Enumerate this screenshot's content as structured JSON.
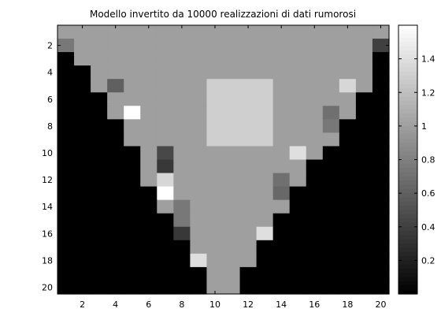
{
  "chart_data": {
    "type": "heatmap",
    "title": "Modello invertito da 10000 realizzazioni di dati rumorosi",
    "xlabel": "",
    "ylabel": "",
    "x_ticks": [
      2,
      4,
      6,
      8,
      10,
      12,
      14,
      16,
      18,
      20
    ],
    "y_ticks": [
      2,
      4,
      6,
      8,
      10,
      12,
      14,
      16,
      18,
      20
    ],
    "x_range": [
      1,
      20
    ],
    "y_range": [
      1,
      20
    ],
    "y_direction": "reversed",
    "colormap": "gray",
    "clim": [
      0,
      1.6
    ],
    "colorbar": {
      "ticks": [
        0.2,
        0.4,
        0.6,
        0.8,
        1,
        1.2,
        1.4
      ],
      "labels": [
        "0.2",
        "0.4",
        "0.6",
        "0.8",
        "1",
        "1.2",
        "1.4"
      ]
    },
    "z": [
      [
        1,
        1,
        1,
        1,
        1,
        1,
        1,
        1,
        1,
        1,
        1,
        1,
        1,
        1,
        1,
        1,
        1,
        1,
        1,
        1
      ],
      [
        0.75,
        1,
        1,
        1,
        1,
        1,
        1,
        1,
        1,
        1,
        1,
        1,
        1,
        1,
        1,
        1,
        1,
        1,
        1,
        0.4
      ],
      [
        0,
        1,
        1,
        1,
        1,
        1,
        1,
        1,
        1,
        1,
        1,
        1,
        1,
        1,
        1,
        1,
        1,
        1,
        1,
        0
      ],
      [
        0,
        0,
        1,
        1,
        1,
        1,
        1,
        1,
        1,
        1,
        1,
        1,
        1,
        1,
        1,
        1,
        1,
        1,
        1,
        0
      ],
      [
        0,
        0,
        1,
        0.6,
        1,
        1,
        1,
        1,
        1,
        1.3,
        1.3,
        1.3,
        1.3,
        1,
        1,
        1,
        1,
        1.35,
        1,
        0
      ],
      [
        0,
        0,
        0,
        1,
        1,
        1,
        1,
        1,
        1,
        1.3,
        1.3,
        1.3,
        1.3,
        1,
        1,
        1,
        1,
        1,
        0,
        0
      ],
      [
        0,
        0,
        0,
        1,
        1.6,
        1,
        1,
        1,
        1,
        1.3,
        1.3,
        1.3,
        1.3,
        1,
        1,
        1,
        0.7,
        1,
        0,
        0
      ],
      [
        0,
        0,
        0,
        0,
        1,
        1,
        1,
        1,
        1,
        1.3,
        1.3,
        1.3,
        1.3,
        1,
        1,
        1,
        0.75,
        0,
        0,
        0
      ],
      [
        0,
        0,
        0,
        0,
        1,
        1,
        1,
        1,
        1,
        1.3,
        1.3,
        1.3,
        1.3,
        1,
        1,
        1,
        1,
        0,
        0,
        0
      ],
      [
        0,
        0,
        0,
        0,
        0,
        1,
        0.45,
        1,
        1,
        1,
        1,
        1,
        1,
        1,
        1.4,
        1,
        0,
        0,
        0,
        0
      ],
      [
        0,
        0,
        0,
        0,
        0,
        1,
        0.35,
        1,
        1,
        1,
        1,
        1,
        1,
        1,
        1,
        0,
        0,
        0,
        0,
        0
      ],
      [
        0,
        0,
        0,
        0,
        0,
        1,
        1.35,
        1,
        1,
        1,
        1,
        1,
        1,
        0.7,
        1,
        0,
        0,
        0,
        0,
        0
      ],
      [
        0,
        0,
        0,
        0,
        0,
        0,
        1.6,
        1,
        1,
        1,
        1,
        1,
        1,
        0.65,
        0,
        0,
        0,
        0,
        0,
        0
      ],
      [
        0,
        0,
        0,
        0,
        0,
        0,
        1,
        0.75,
        1,
        1,
        1,
        1,
        1,
        1,
        0,
        0,
        0,
        0,
        0,
        0
      ],
      [
        0,
        0,
        0,
        0,
        0,
        0,
        0,
        0.75,
        1,
        1,
        1,
        1,
        1,
        0,
        0,
        0,
        0,
        0,
        0,
        0
      ],
      [
        0,
        0,
        0,
        0,
        0,
        0,
        0,
        0.35,
        1,
        1,
        1,
        1,
        1.4,
        0,
        0,
        0,
        0,
        0,
        0,
        0
      ],
      [
        0,
        0,
        0,
        0,
        0,
        0,
        0,
        0,
        1,
        1,
        1,
        1,
        0,
        0,
        0,
        0,
        0,
        0,
        0,
        0
      ],
      [
        0,
        0,
        0,
        0,
        0,
        0,
        0,
        0,
        1.4,
        1,
        1,
        1,
        0,
        0,
        0,
        0,
        0,
        0,
        0,
        0
      ],
      [
        0,
        0,
        0,
        0,
        0,
        0,
        0,
        0,
        0,
        1,
        1,
        0,
        0,
        0,
        0,
        0,
        0,
        0,
        0,
        0
      ],
      [
        0,
        0,
        0,
        0,
        0,
        0,
        0,
        0,
        0,
        1,
        1,
        0,
        0,
        0,
        0,
        0,
        0,
        0,
        0,
        0
      ]
    ]
  }
}
